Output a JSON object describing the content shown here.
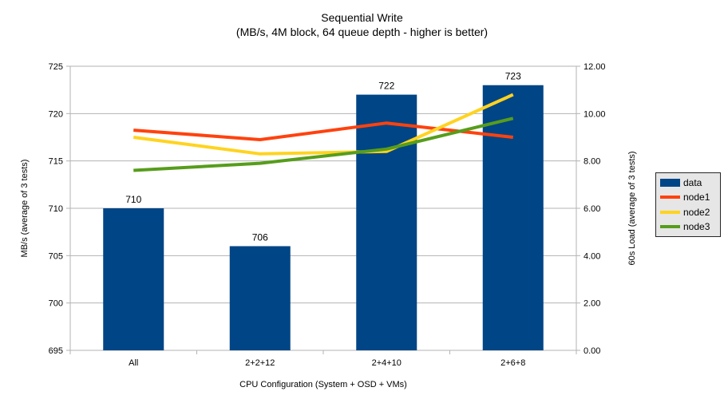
{
  "title": "Sequential Write",
  "subtitle": "(MB/s, 4M block, 64 queue depth - higher is better)",
  "chart_data": {
    "type": "bar+line",
    "categories": [
      "All",
      "2+2+12",
      "2+4+10",
      "2+6+8"
    ],
    "bar_series": {
      "name": "data",
      "values": [
        710,
        706,
        722,
        723
      ],
      "color": "#004586",
      "axis": "left",
      "data_labels": [
        "710",
        "706",
        "722",
        "723"
      ]
    },
    "line_series": [
      {
        "name": "node1",
        "color": "#FF420E",
        "values": [
          9.3,
          8.9,
          9.6,
          9.0
        ]
      },
      {
        "name": "node2",
        "color": "#FFD320",
        "values": [
          9.0,
          8.3,
          8.4,
          10.8
        ]
      },
      {
        "name": "node3",
        "color": "#579D1C",
        "values": [
          7.6,
          7.9,
          8.5,
          9.8
        ]
      }
    ],
    "left_axis": {
      "title": "MB/s (average of 3 tests)",
      "min": 695,
      "max": 725,
      "step": 5,
      "tick_labels": [
        "695",
        "700",
        "705",
        "710",
        "715",
        "720",
        "725"
      ]
    },
    "right_axis": {
      "title": "60s Load (average of 3 tests)",
      "min": 0,
      "max": 12,
      "step": 2,
      "tick_labels": [
        "0.00",
        "2.00",
        "4.00",
        "6.00",
        "8.00",
        "10.00",
        "12.00"
      ]
    },
    "x_axis": {
      "title": "CPU Configuration (System + OSD + VMs)"
    },
    "legend": {
      "position": "right",
      "entries": [
        "data",
        "node1",
        "node2",
        "node3"
      ],
      "background": "#e6e6e6",
      "border_color": "#262626"
    },
    "grid": true,
    "grid_color": "#b3b3b3",
    "axis_line_color": "#b3b3b3",
    "text_color": "#000000",
    "background": "#ffffff"
  }
}
